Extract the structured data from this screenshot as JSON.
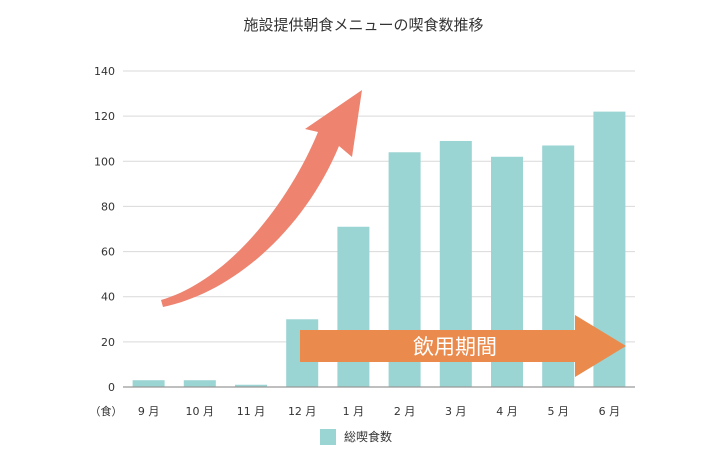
{
  "chart_data": {
    "type": "bar",
    "title": "施設提供朝食メニューの喫食数推移",
    "categories": [
      "9 月",
      "10 月",
      "11 月",
      "12 月",
      "1 月",
      "2 月",
      "3 月",
      "4 月",
      "5 月",
      "6 月"
    ],
    "x_unit_label": "（食）",
    "series": [
      {
        "name": "総喫食数",
        "values": [
          3,
          3,
          1,
          30,
          71,
          104,
          109,
          102,
          107,
          122
        ],
        "color": "#9ad4d3"
      }
    ],
    "ylim": [
      0,
      140
    ],
    "yticks": [
      "0",
      "20",
      "40",
      "60",
      "80",
      "100",
      "120",
      "140"
    ],
    "grid": true,
    "legend_position": "bottom-center",
    "annotations": {
      "period_label": "飲用期間",
      "period_arrow_color": "#ea8a4c",
      "trend_arrow_color": "#ee8370"
    }
  }
}
